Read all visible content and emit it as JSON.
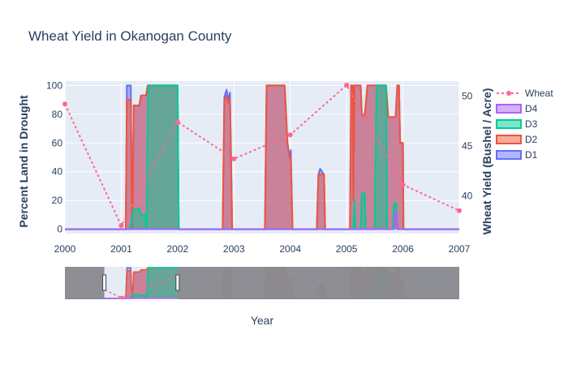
{
  "chart_data": {
    "type": "area",
    "title": "Wheat Yield in Okanogan County",
    "xlabel": "Year",
    "ylabel_left": "Percent Land in Drought",
    "ylabel_right": "Wheat Yield (Bushel / Acre)",
    "x_ticks": [
      "2000",
      "2001",
      "2002",
      "2003",
      "2004",
      "2005",
      "2006",
      "2007"
    ],
    "y_left_ticks": [
      0,
      20,
      40,
      60,
      80,
      100
    ],
    "y_right_ticks": [
      40,
      45,
      50
    ],
    "xlim": [
      2000,
      2007
    ],
    "ylim_left": [
      -3,
      103
    ],
    "ylim_right": [
      36.2,
      51.5
    ],
    "grid": true,
    "legend_position": "right",
    "colors": {
      "wheat": "#ff6692",
      "D4": "#ab63fa",
      "D3": "#00cc96",
      "D2": "#ef553b",
      "D1": "#636efa",
      "plot_bg": "#e5ecf6",
      "rangeslider_mask": "#888a8f"
    },
    "legend": [
      {
        "key": "wheat",
        "label": "Wheat"
      },
      {
        "key": "D4",
        "label": "D4"
      },
      {
        "key": "D3",
        "label": "D3"
      },
      {
        "key": "D2",
        "label": "D2"
      },
      {
        "key": "D1",
        "label": "D1"
      }
    ],
    "rangeslider": {
      "start": 2000.7,
      "end": 2002.0
    },
    "series": [
      {
        "name": "Wheat",
        "key": "wheat",
        "axis": "right",
        "mode": "lines+markers",
        "points": [
          [
            2000.0,
            49.2
          ],
          [
            2001.0,
            37.0
          ],
          [
            2002.0,
            47.4
          ],
          [
            2003.0,
            43.7
          ],
          [
            2004.0,
            46.1
          ],
          [
            2005.0,
            51.1
          ],
          [
            2006.0,
            41.1
          ],
          [
            2007.0,
            38.5
          ]
        ]
      },
      {
        "name": "D1",
        "key": "D1",
        "axis": "left",
        "points": [
          [
            2000.0,
            0
          ],
          [
            2001.08,
            0
          ],
          [
            2001.1,
            100
          ],
          [
            2001.17,
            100
          ],
          [
            2001.19,
            0
          ],
          [
            2001.2,
            0
          ],
          [
            2001.22,
            86
          ],
          [
            2001.32,
            86
          ],
          [
            2001.35,
            93
          ],
          [
            2001.44,
            93
          ],
          [
            2001.47,
            100
          ],
          [
            2002.0,
            100
          ],
          [
            2002.02,
            0
          ],
          [
            2002.8,
            0
          ],
          [
            2002.83,
            92
          ],
          [
            2002.87,
            97
          ],
          [
            2002.9,
            90
          ],
          [
            2002.93,
            95
          ],
          [
            2002.97,
            0
          ],
          [
            2003.55,
            0
          ],
          [
            2003.58,
            100
          ],
          [
            2003.9,
            100
          ],
          [
            2003.92,
            85
          ],
          [
            2003.95,
            60
          ],
          [
            2003.97,
            55
          ],
          [
            2003.99,
            50
          ],
          [
            2004.01,
            55
          ],
          [
            2004.04,
            0
          ],
          [
            2004.47,
            0
          ],
          [
            2004.5,
            38
          ],
          [
            2004.53,
            42
          ],
          [
            2004.6,
            38
          ],
          [
            2004.62,
            0
          ],
          [
            2005.06,
            0
          ],
          [
            2005.08,
            100
          ],
          [
            2005.11,
            100
          ],
          [
            2005.12,
            20
          ],
          [
            2005.14,
            100
          ],
          [
            2005.25,
            100
          ],
          [
            2005.27,
            80
          ],
          [
            2005.32,
            78
          ],
          [
            2005.37,
            100
          ],
          [
            2005.7,
            100
          ],
          [
            2005.74,
            78
          ],
          [
            2005.87,
            78
          ],
          [
            2005.9,
            100
          ],
          [
            2005.93,
            100
          ],
          [
            2005.95,
            60
          ],
          [
            2006.0,
            60
          ],
          [
            2006.01,
            0
          ],
          [
            2006.04,
            0
          ],
          [
            2007.0,
            0
          ]
        ]
      },
      {
        "name": "D2",
        "key": "D2",
        "axis": "left",
        "points": [
          [
            2000.0,
            0
          ],
          [
            2001.08,
            0
          ],
          [
            2001.1,
            90
          ],
          [
            2001.17,
            90
          ],
          [
            2001.19,
            0
          ],
          [
            2001.2,
            0
          ],
          [
            2001.22,
            86
          ],
          [
            2001.32,
            86
          ],
          [
            2001.35,
            93
          ],
          [
            2001.44,
            93
          ],
          [
            2001.47,
            100
          ],
          [
            2002.0,
            100
          ],
          [
            2002.02,
            0
          ],
          [
            2002.8,
            0
          ],
          [
            2002.83,
            90
          ],
          [
            2002.87,
            93
          ],
          [
            2002.9,
            88
          ],
          [
            2002.93,
            90
          ],
          [
            2002.97,
            0
          ],
          [
            2003.55,
            0
          ],
          [
            2003.58,
            100
          ],
          [
            2003.9,
            100
          ],
          [
            2003.92,
            85
          ],
          [
            2003.95,
            60
          ],
          [
            2003.97,
            55
          ],
          [
            2003.99,
            50
          ],
          [
            2004.01,
            50
          ],
          [
            2004.04,
            0
          ],
          [
            2004.47,
            0
          ],
          [
            2004.5,
            38
          ],
          [
            2004.6,
            38
          ],
          [
            2004.62,
            0
          ],
          [
            2005.06,
            0
          ],
          [
            2005.08,
            100
          ],
          [
            2005.11,
            100
          ],
          [
            2005.12,
            20
          ],
          [
            2005.14,
            100
          ],
          [
            2005.25,
            100
          ],
          [
            2005.27,
            80
          ],
          [
            2005.32,
            78
          ],
          [
            2005.37,
            100
          ],
          [
            2005.7,
            100
          ],
          [
            2005.74,
            78
          ],
          [
            2005.87,
            78
          ],
          [
            2005.9,
            100
          ],
          [
            2005.93,
            100
          ],
          [
            2005.95,
            60
          ],
          [
            2006.0,
            60
          ],
          [
            2006.01,
            0
          ],
          [
            2007.0,
            0
          ]
        ]
      },
      {
        "name": "D3",
        "key": "D3",
        "axis": "left",
        "points": [
          [
            2000.0,
            0
          ],
          [
            2001.15,
            0
          ],
          [
            2001.18,
            5
          ],
          [
            2001.22,
            14
          ],
          [
            2001.32,
            14
          ],
          [
            2001.35,
            10
          ],
          [
            2001.42,
            10
          ],
          [
            2001.45,
            0
          ],
          [
            2001.47,
            80
          ],
          [
            2001.48,
            100
          ],
          [
            2002.0,
            100
          ],
          [
            2002.02,
            0
          ],
          [
            2005.12,
            0
          ],
          [
            2005.14,
            20
          ],
          [
            2005.16,
            0
          ],
          [
            2005.25,
            0
          ],
          [
            2005.27,
            25
          ],
          [
            2005.32,
            25
          ],
          [
            2005.34,
            0
          ],
          [
            2005.5,
            0
          ],
          [
            2005.53,
            100
          ],
          [
            2005.7,
            100
          ],
          [
            2005.72,
            0
          ],
          [
            2005.82,
            0
          ],
          [
            2005.84,
            18
          ],
          [
            2005.88,
            18
          ],
          [
            2005.9,
            0
          ],
          [
            2007.0,
            0
          ]
        ]
      },
      {
        "name": "D4",
        "key": "D4",
        "axis": "left",
        "points": [
          [
            2000.0,
            0
          ],
          [
            2005.84,
            0
          ],
          [
            2005.86,
            12
          ],
          [
            2005.88,
            12
          ],
          [
            2005.9,
            0
          ],
          [
            2007.0,
            0
          ]
        ]
      }
    ]
  }
}
